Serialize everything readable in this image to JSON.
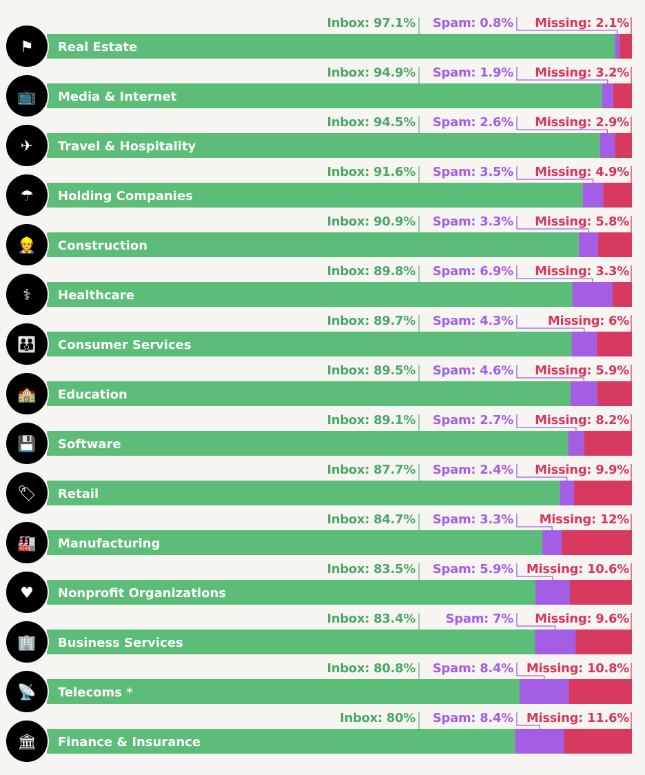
{
  "chart_data": {
    "type": "bar",
    "stacked": true,
    "orientation": "horizontal",
    "xlim": [
      0,
      100
    ],
    "colors": {
      "Inbox": "#5bbd78",
      "Spam": "#a45ee5",
      "Missing": "#d83a5f"
    },
    "label_colors": {
      "Inbox": "#4aa868",
      "Spam": "#a45ee5",
      "Missing": "#d8365c"
    },
    "categories": [
      "Real Estate",
      "Media & Internet",
      "Travel & Hospitality",
      "Holding Companies",
      "Construction",
      "Healthcare",
      "Consumer Services",
      "Education",
      "Software",
      "Retail",
      "Manufacturing",
      "Nonprofit Organizations",
      "Business Services",
      "Telecoms *",
      "Finance & Insurance"
    ],
    "icons": [
      "sign-icon",
      "tv-icon",
      "ticket-icon",
      "umbrella-icon",
      "worker-icon",
      "caduceus-icon",
      "people-icon",
      "school-icon",
      "floppy-icon",
      "tag-icon",
      "factory-icon",
      "hand-heart-icon",
      "building-icon",
      "antenna-icon",
      "bank-icon"
    ],
    "series": [
      {
        "name": "Inbox",
        "values": [
          97.1,
          94.9,
          94.5,
          91.6,
          90.9,
          89.8,
          89.7,
          89.5,
          89.1,
          87.7,
          84.7,
          83.5,
          83.4,
          80.8,
          80
        ]
      },
      {
        "name": "Spam",
        "values": [
          0.8,
          1.9,
          2.6,
          3.5,
          3.3,
          6.9,
          4.3,
          4.6,
          2.7,
          2.4,
          3.3,
          5.9,
          7,
          8.4,
          8.4
        ]
      },
      {
        "name": "Missing",
        "values": [
          2.1,
          3.2,
          2.9,
          4.9,
          5.8,
          3.3,
          6,
          5.9,
          8.2,
          9.9,
          12,
          10.6,
          9.6,
          10.8,
          11.6
        ]
      }
    ]
  }
}
